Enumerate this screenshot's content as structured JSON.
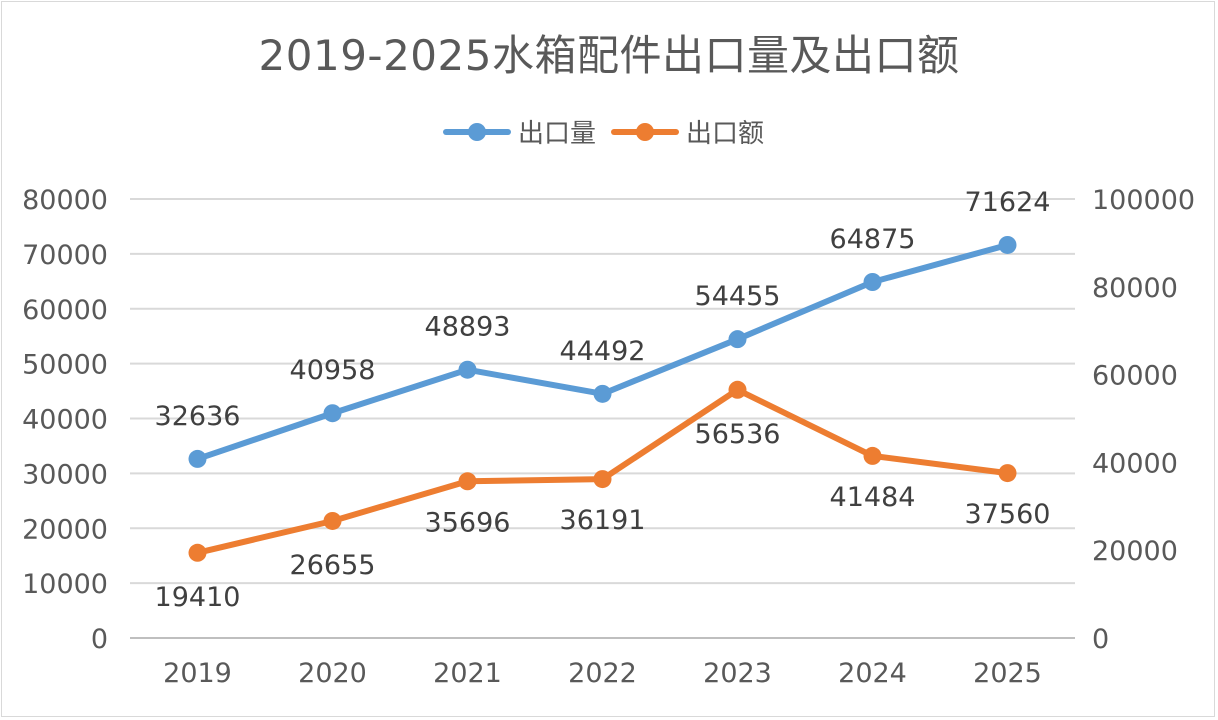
{
  "chart_data": {
    "type": "line",
    "title": "2019-2025水箱配件出口量及出口额",
    "categories": [
      "2019",
      "2020",
      "2021",
      "2022",
      "2023",
      "2024",
      "2025"
    ],
    "series": [
      {
        "name": "出口量",
        "axis": "left",
        "color": "#5b9bd5",
        "values": [
          32636,
          40958,
          48893,
          44492,
          54455,
          64875,
          71624
        ],
        "label_position": "above"
      },
      {
        "name": "出口额",
        "axis": "right",
        "color": "#ed7d31",
        "values": [
          19410,
          26655,
          35696,
          36191,
          56536,
          41484,
          37560
        ],
        "label_position": "below"
      }
    ],
    "y_left": {
      "min": 0,
      "max": 80000,
      "step": 10000,
      "ticks": [
        "0",
        "10000",
        "20000",
        "30000",
        "40000",
        "50000",
        "60000",
        "70000",
        "80000"
      ]
    },
    "y_right": {
      "min": 0,
      "max": 100000,
      "step": 20000,
      "ticks": [
        "0",
        "20000",
        "40000",
        "60000",
        "80000",
        "100000"
      ]
    },
    "legend_position": "top",
    "grid": true
  }
}
